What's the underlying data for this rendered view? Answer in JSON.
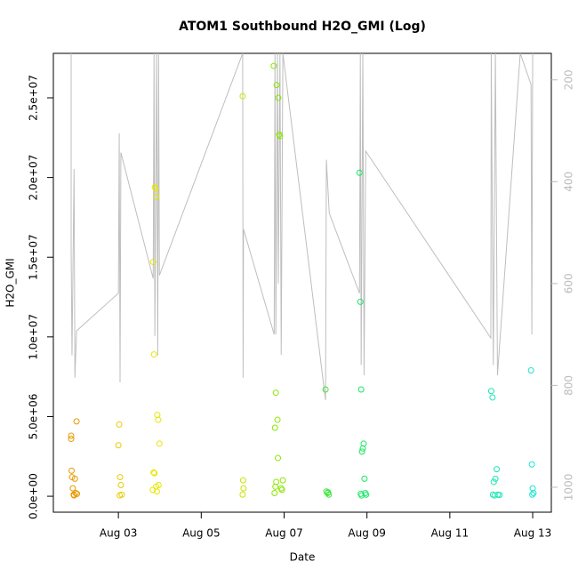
{
  "chart_data": {
    "type": "scatter",
    "title": "ATOM1 Southbound H2O_GMI (Log)",
    "x_label": "Date",
    "y_label": "H2O_GMI",
    "xlim": [
      1.43,
      13.45
    ],
    "xticks": [
      {
        "value": 3,
        "label": "Aug 03"
      },
      {
        "value": 5,
        "label": "Aug 05"
      },
      {
        "value": 7,
        "label": "Aug 07"
      },
      {
        "value": 9,
        "label": "Aug 09"
      },
      {
        "value": 11,
        "label": "Aug 11"
      },
      {
        "value": 13,
        "label": "Aug 13"
      }
    ],
    "ylim": [
      -1000000,
      27790000
    ],
    "yticks": [
      {
        "value": 0,
        "label": "0.0e+00"
      },
      {
        "value": 5000000,
        "label": "5.0e+06"
      },
      {
        "value": 10000000,
        "label": "1.0e+07"
      },
      {
        "value": 15000000,
        "label": "1.5e+07"
      },
      {
        "value": 20000000,
        "label": "2.0e+07"
      },
      {
        "value": 25000000,
        "label": "2.5e+07"
      }
    ],
    "y2lim": [
      1049,
      148
    ],
    "y2ticks": [
      200,
      400,
      600,
      800,
      1000
    ],
    "series": [
      {
        "type": "line",
        "axis": "y2",
        "color": "#bebebe",
        "x": [
          1.86,
          1.86,
          1.88,
          1.93,
          1.95,
          1.99,
          3.0,
          3.02,
          3.04,
          3.06,
          3.84,
          3.86,
          3.88,
          3.92,
          3.95,
          3.97,
          3.99,
          6.0,
          6.01,
          6.02,
          6.76,
          6.78,
          6.8,
          6.84,
          6.86,
          6.9,
          6.93,
          6.97,
          8.0,
          8.02,
          8.09,
          8.82,
          8.84,
          8.86,
          8.9,
          8.93,
          8.97,
          11.99,
          12.0,
          12.05,
          12.1,
          12.15,
          12.7,
          12.96,
          12.98,
          13.0
        ],
        "values": [
          148,
          537,
          741,
          375,
          785,
          693,
          619,
          305,
          794,
          343,
          590,
          148,
          703,
          148,
          741,
          148,
          584,
          148,
          785,
          493,
          700,
          148,
          700,
          148,
          600,
          148,
          740,
          148,
          829,
          357,
          462,
          619,
          148,
          760,
          148,
          780,
          340,
          707,
          148,
          760,
          148,
          780,
          148,
          209,
          700,
          148
        ]
      },
      {
        "color": "#e69a00",
        "x": [
          1.86,
          1.86,
          1.87,
          1.88,
          1.9,
          1.92,
          1.95,
          1.99,
          1.97,
          1.93,
          2.0
        ],
        "values": [
          3600000,
          3800000,
          1600000,
          1200000,
          500000,
          100000,
          1100000,
          4700000,
          200000,
          50000,
          150000
        ]
      },
      {
        "color": "#e6cc00",
        "x": [
          3.0,
          3.02,
          3.04,
          3.06,
          3.08,
          3.03
        ],
        "values": [
          3200000,
          4500000,
          1200000,
          700000,
          100000,
          50000
        ]
      },
      {
        "color": "#e6e600",
        "x": [
          3.84,
          3.86,
          3.88,
          3.9,
          3.92,
          3.94,
          3.96,
          3.85,
          3.87,
          3.91,
          3.93,
          3.97,
          3.83,
          3.99
        ],
        "values": [
          14700000,
          8900000,
          19400000,
          19300000,
          18800000,
          5100000,
          4800000,
          1500000,
          1450000,
          600000,
          300000,
          700000,
          400000,
          3300000
        ]
      },
      {
        "color": "#c8e600",
        "x": [
          6.0,
          6.01,
          6.02,
          6.0
        ],
        "values": [
          25100000,
          1000000,
          500000,
          100000
        ]
      },
      {
        "color": "#8ce600",
        "x": [
          6.75,
          6.78,
          6.8,
          6.82,
          6.84,
          6.86,
          6.88,
          6.9,
          6.77,
          6.81,
          6.93,
          6.95,
          6.97,
          6.79,
          6.85
        ],
        "values": [
          27000000,
          4300000,
          6500000,
          25800000,
          4800000,
          25000000,
          22700000,
          22600000,
          200000,
          900000,
          500000,
          400000,
          1000000,
          600000,
          2400000
        ]
      },
      {
        "color": "#40e640",
        "x": [
          8.0,
          8.02,
          8.05,
          8.08,
          8.06
        ],
        "values": [
          6700000,
          300000,
          200000,
          100000,
          250000
        ]
      },
      {
        "color": "#1ae666",
        "x": [
          8.82,
          8.84,
          8.86,
          8.88,
          8.9,
          8.92,
          8.94,
          8.96,
          8.98,
          8.85,
          8.87
        ],
        "values": [
          20300000,
          12200000,
          6700000,
          2800000,
          3000000,
          3300000,
          1100000,
          200000,
          100000,
          150000,
          50000
        ]
      },
      {
        "color": "#1ae6b3",
        "x": [
          12.0,
          12.03,
          12.06,
          12.1,
          12.13,
          12.04,
          12.08,
          12.16,
          12.2
        ],
        "values": [
          6600000,
          6200000,
          900000,
          1100000,
          1700000,
          100000,
          50000,
          100000,
          80000
        ]
      },
      {
        "color": "#1ae6cc",
        "x": [
          12.96,
          12.98,
          13.0,
          13.02,
          12.99
        ],
        "values": [
          7900000,
          2000000,
          500000,
          200000,
          100000
        ]
      }
    ]
  }
}
